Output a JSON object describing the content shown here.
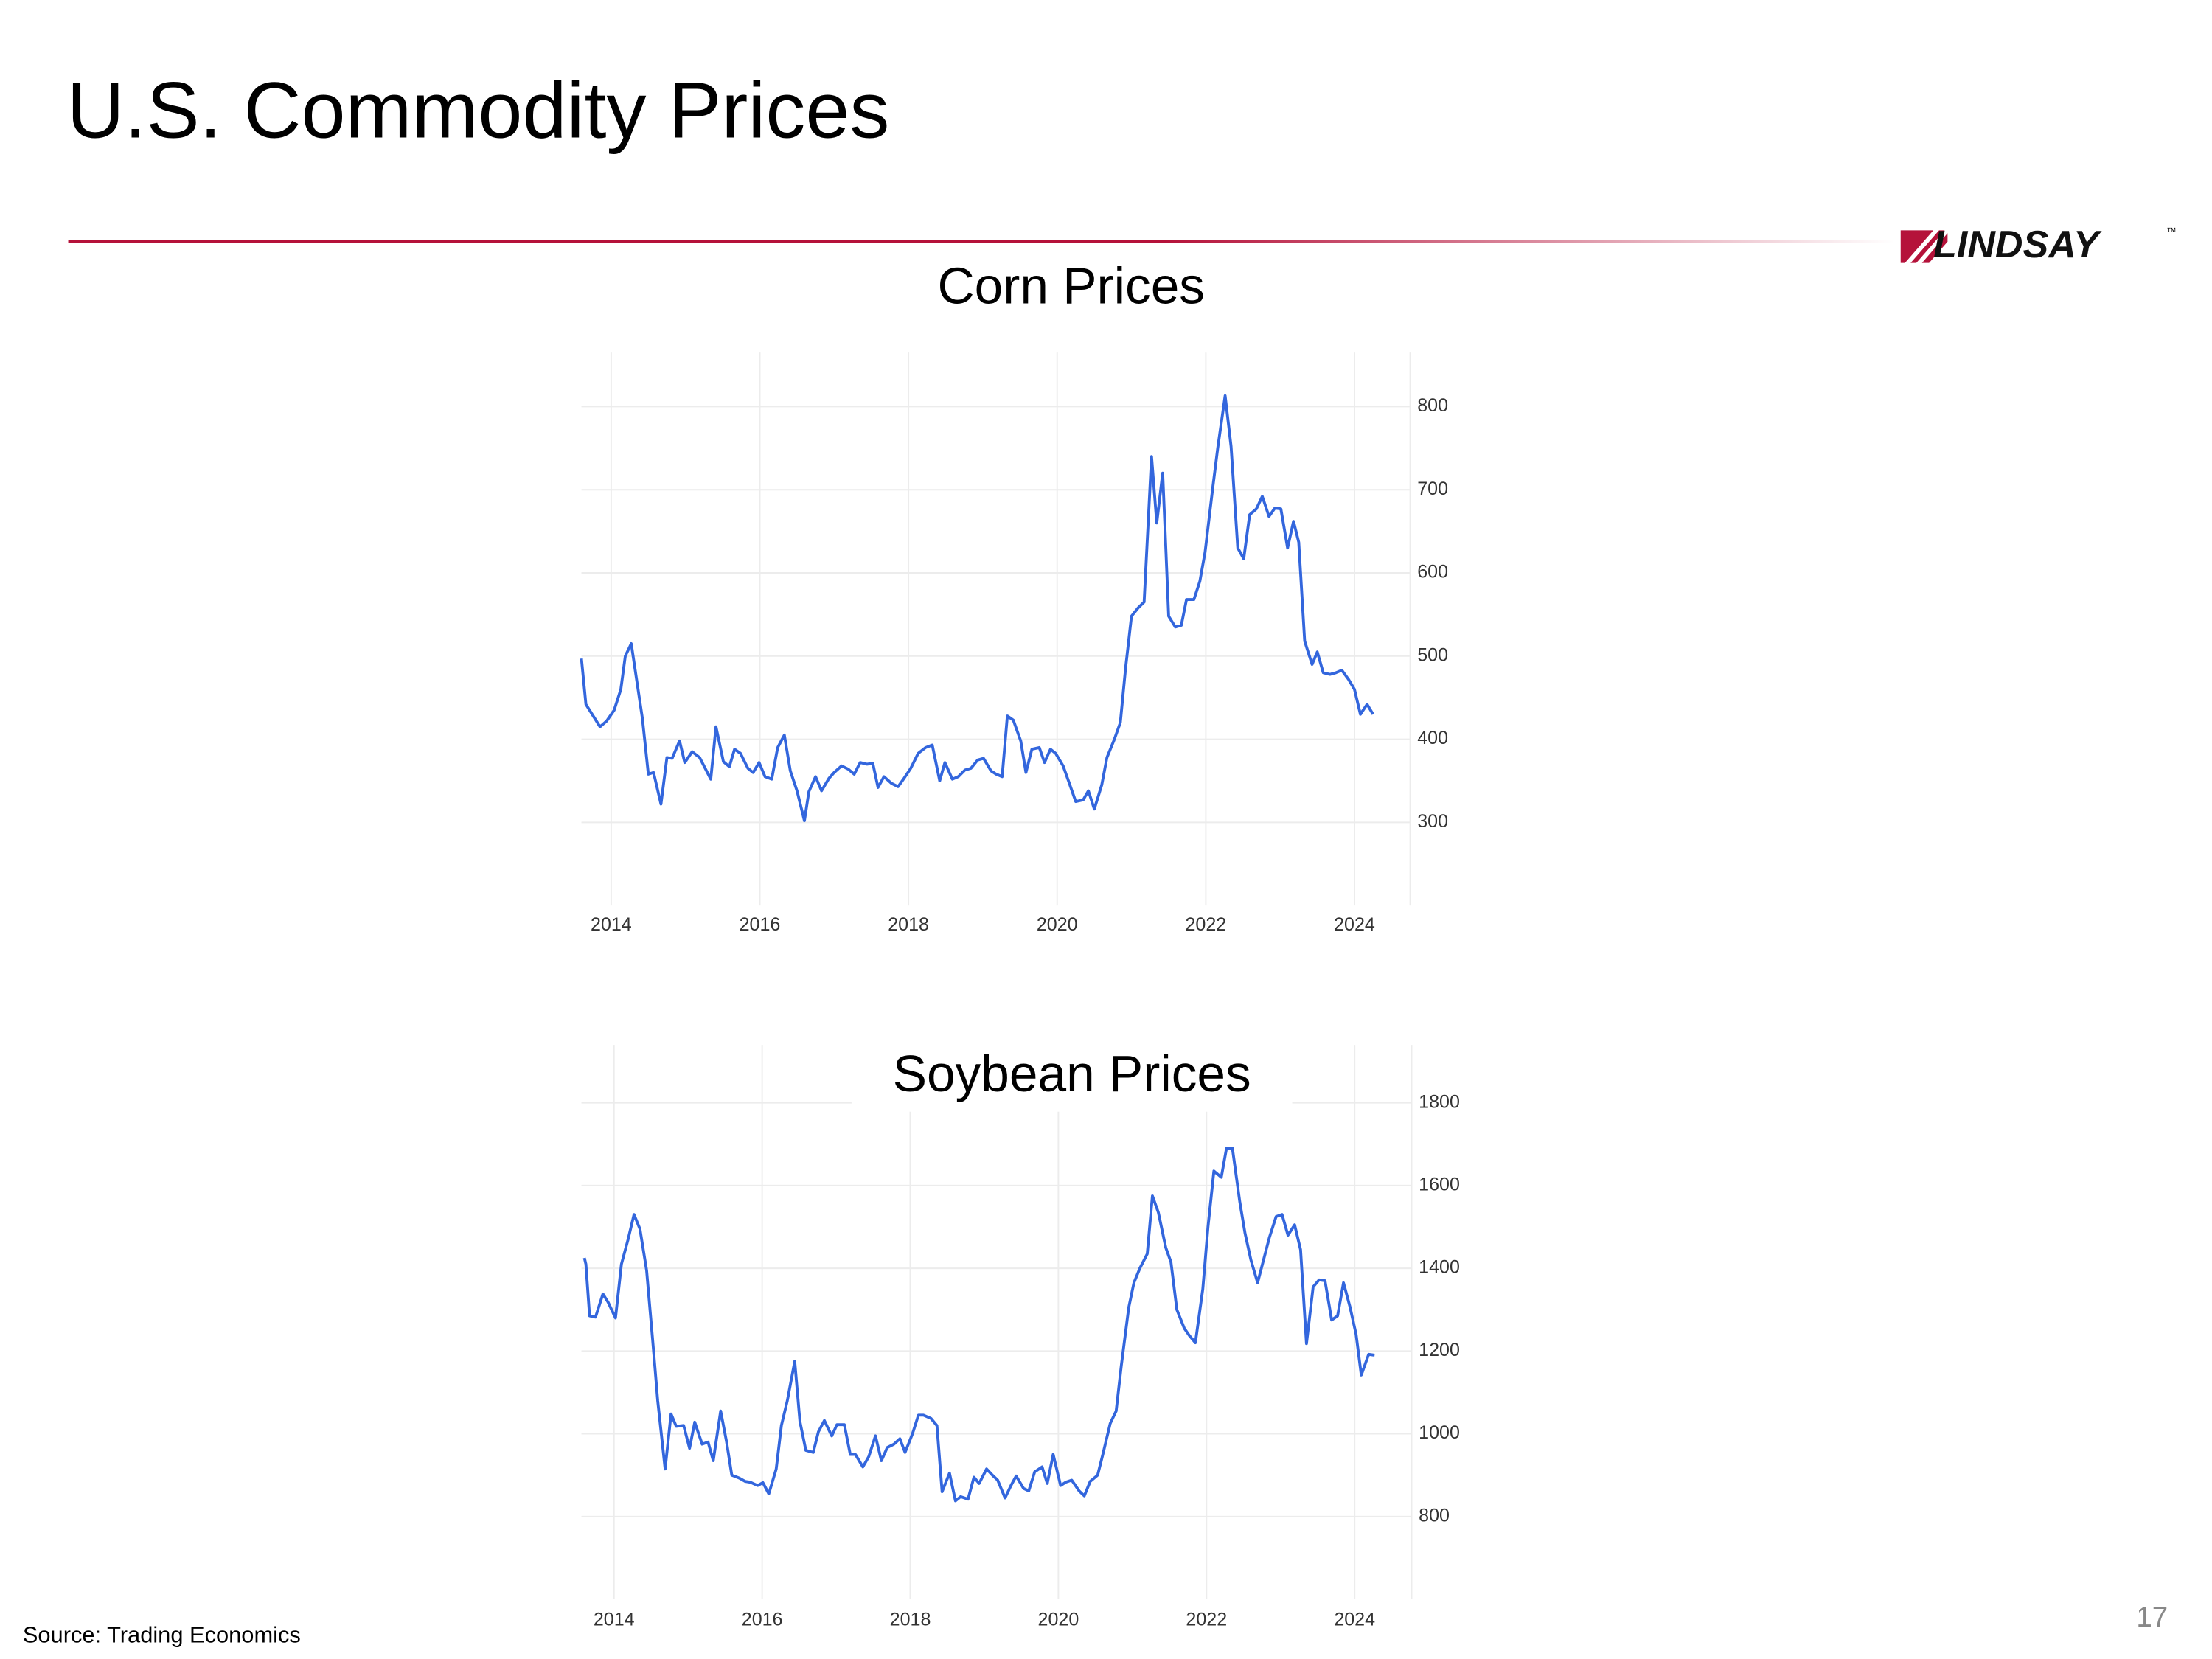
{
  "title": "U.S. Commodity Prices",
  "logo": "LINDSAY",
  "trademark": "™",
  "source": "Source: Trading Economics",
  "page_number": "17",
  "chart_data": [
    {
      "type": "line",
      "title": "Corn Prices",
      "color": "#3366dd",
      "grid": true,
      "xlim": [
        2013.6,
        2024.75
      ],
      "xticks": [
        2014,
        2016,
        2018,
        2020,
        2022,
        2024
      ],
      "ylim": [
        200,
        865
      ],
      "yticks": [
        300,
        400,
        500,
        600,
        700,
        800
      ],
      "x": [
        2013.6,
        2013.66,
        2013.85,
        2013.94,
        2014.04,
        2014.13,
        2014.19,
        2014.27,
        2014.42,
        2014.5,
        2014.57,
        2014.67,
        2014.75,
        2014.82,
        2014.92,
        2014.99,
        2015.09,
        2015.19,
        2015.34,
        2015.41,
        2015.51,
        2015.59,
        2015.66,
        2015.74,
        2015.84,
        2015.91,
        2015.99,
        2016.07,
        2016.16,
        2016.24,
        2016.33,
        2016.41,
        2016.5,
        2016.6,
        2016.66,
        2016.75,
        2016.83,
        2016.93,
        2017.0,
        2017.1,
        2017.19,
        2017.27,
        2017.35,
        2017.44,
        2017.52,
        2017.59,
        2017.67,
        2017.77,
        2017.86,
        2017.94,
        2018.03,
        2018.13,
        2018.23,
        2018.32,
        2018.42,
        2018.49,
        2018.59,
        2018.67,
        2018.76,
        2018.84,
        2018.93,
        2019.01,
        2019.11,
        2019.18,
        2019.26,
        2019.33,
        2019.41,
        2019.51,
        2019.58,
        2019.66,
        2019.76,
        2019.83,
        2019.91,
        2019.98,
        2020.08,
        2020.16,
        2020.25,
        2020.35,
        2020.42,
        2020.5,
        2020.6,
        2020.67,
        2020.77,
        2020.85,
        2020.92,
        2021.0,
        2021.09,
        2021.17,
        2021.27,
        2021.34,
        2021.42,
        2021.5,
        2021.59,
        2021.67,
        2021.74,
        2021.84,
        2021.92,
        2021.99,
        2022.09,
        2022.16,
        2022.26,
        2022.34,
        2022.43,
        2022.51,
        2022.59,
        2022.68,
        2022.76,
        2022.85,
        2022.93,
        2023.01,
        2023.1,
        2023.18,
        2023.25,
        2023.33,
        2023.43,
        2023.5,
        2023.58,
        2023.67,
        2023.75,
        2023.83,
        2023.92,
        2024.0,
        2024.08,
        2024.17,
        2024.25
      ],
      "values": [
        497,
        442,
        415,
        422,
        435,
        460,
        500,
        515,
        425,
        358,
        360,
        322,
        378,
        377,
        398,
        372,
        385,
        378,
        352,
        415,
        373,
        367,
        388,
        383,
        365,
        360,
        372,
        355,
        352,
        390,
        405,
        362,
        338,
        302,
        337,
        355,
        338,
        353,
        360,
        368,
        364,
        358,
        372,
        370,
        371,
        342,
        355,
        347,
        343,
        353,
        365,
        383,
        390,
        393,
        350,
        372,
        352,
        355,
        363,
        365,
        375,
        377,
        362,
        358,
        355,
        428,
        423,
        398,
        360,
        388,
        390,
        372,
        388,
        383,
        368,
        348,
        325,
        327,
        338,
        316,
        345,
        378,
        400,
        420,
        485,
        548,
        558,
        565,
        740,
        660,
        720,
        548,
        535,
        537,
        568,
        568,
        590,
        625,
        700,
        750,
        813,
        752,
        630,
        617,
        670,
        677,
        692,
        668,
        678,
        677,
        630,
        662,
        637,
        518,
        490,
        505,
        480,
        478,
        480,
        483,
        472,
        460,
        430,
        442,
        430
      ]
    },
    {
      "type": "line",
      "title": "Soybean Prices",
      "color": "#3366dd",
      "grid": true,
      "xlim": [
        2013.56,
        2024.77
      ],
      "xticks": [
        2014,
        2016,
        2018,
        2020,
        2022,
        2024
      ],
      "ylim": [
        600,
        1940
      ],
      "yticks": [
        800,
        1000,
        1200,
        1400,
        1600,
        1800
      ],
      "x": [
        2013.6,
        2013.62,
        2013.67,
        2013.75,
        2013.85,
        2013.92,
        2014.02,
        2014.1,
        2014.19,
        2014.27,
        2014.35,
        2014.44,
        2014.52,
        2014.59,
        2014.69,
        2014.77,
        2014.84,
        2014.94,
        2015.02,
        2015.09,
        2015.19,
        2015.27,
        2015.34,
        2015.44,
        2015.52,
        2015.59,
        2015.69,
        2015.77,
        2015.84,
        2015.94,
        2016.01,
        2016.09,
        2016.19,
        2016.26,
        2016.34,
        2016.44,
        2016.51,
        2016.59,
        2016.69,
        2016.76,
        2016.84,
        2016.94,
        2017.01,
        2017.11,
        2017.19,
        2017.26,
        2017.36,
        2017.44,
        2017.53,
        2017.61,
        2017.69,
        2017.78,
        2017.86,
        2017.93,
        2018.03,
        2018.11,
        2018.18,
        2018.28,
        2018.36,
        2018.43,
        2018.53,
        2018.61,
        2018.68,
        2018.78,
        2018.86,
        2018.93,
        2019.03,
        2019.11,
        2019.18,
        2019.28,
        2019.36,
        2019.43,
        2019.53,
        2019.6,
        2019.68,
        2019.78,
        2019.85,
        2019.93,
        2020.03,
        2020.1,
        2020.18,
        2020.28,
        2020.35,
        2020.43,
        2020.53,
        2020.6,
        2020.7,
        2020.78,
        2020.85,
        2020.95,
        2021.02,
        2021.1,
        2021.2,
        2021.27,
        2021.35,
        2021.45,
        2021.52,
        2021.6,
        2021.7,
        2021.77,
        2021.85,
        2021.95,
        2022.02,
        2022.1,
        2022.2,
        2022.27,
        2022.35,
        2022.45,
        2022.52,
        2022.6,
        2022.69,
        2022.77,
        2022.85,
        2022.94,
        2023.02,
        2023.1,
        2023.19,
        2023.27,
        2023.35,
        2023.44,
        2023.52,
        2023.6,
        2023.69,
        2023.77,
        2023.85,
        2023.94,
        2024.02,
        2024.09,
        2024.19,
        2024.27
      ],
      "values": [
        1425,
        1410,
        1285,
        1282,
        1338,
        1318,
        1280,
        1410,
        1470,
        1530,
        1495,
        1395,
        1230,
        1080,
        915,
        1048,
        1018,
        1020,
        965,
        1028,
        975,
        980,
        935,
        1055,
        980,
        900,
        893,
        885,
        883,
        875,
        882,
        855,
        915,
        1020,
        1080,
        1175,
        1030,
        960,
        955,
        1005,
        1032,
        995,
        1022,
        1022,
        950,
        950,
        920,
        945,
        995,
        935,
        967,
        975,
        988,
        955,
        1000,
        1045,
        1045,
        1037,
        1020,
        860,
        905,
        838,
        848,
        842,
        895,
        880,
        915,
        900,
        888,
        845,
        875,
        898,
        868,
        862,
        908,
        920,
        880,
        950,
        875,
        883,
        888,
        862,
        850,
        885,
        900,
        950,
        1025,
        1055,
        1165,
        1305,
        1365,
        1400,
        1435,
        1575,
        1535,
        1450,
        1415,
        1300,
        1255,
        1237,
        1220,
        1350,
        1500,
        1635,
        1620,
        1690,
        1690,
        1560,
        1485,
        1420,
        1365,
        1420,
        1475,
        1525,
        1530,
        1480,
        1505,
        1445,
        1218,
        1355,
        1372,
        1370,
        1275,
        1285,
        1365,
        1305,
        1240,
        1142,
        1192,
        1190
      ]
    }
  ]
}
